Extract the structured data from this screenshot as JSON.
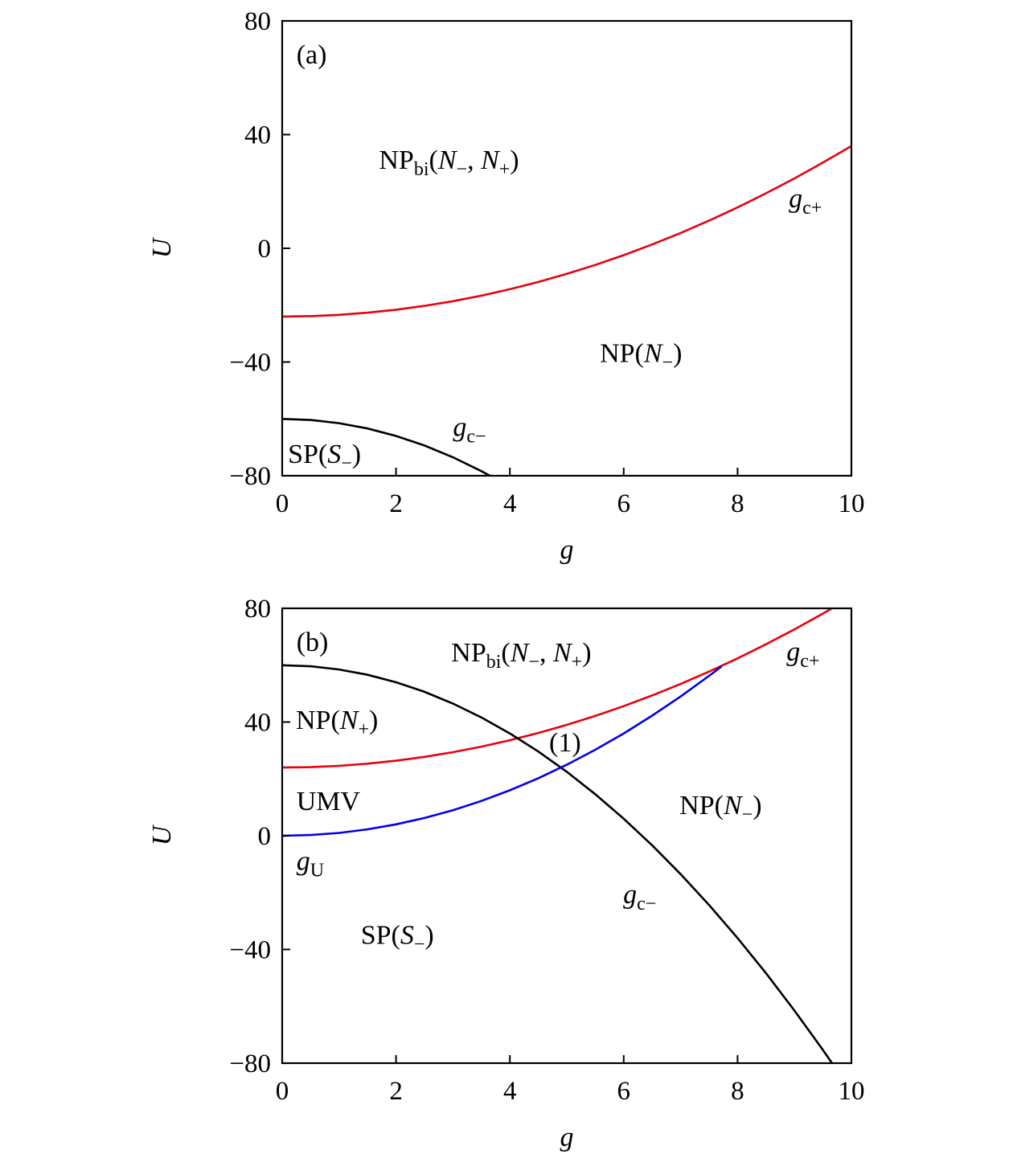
{
  "chart_data": [
    {
      "type": "line",
      "panel_label": "(a)",
      "xlabel": "g",
      "ylabel": "U",
      "xlim": [
        0,
        10
      ],
      "ylim": [
        -80,
        80
      ],
      "xticks": [
        "0",
        "2",
        "4",
        "6",
        "8",
        "10"
      ],
      "yticks": [
        "80",
        "40",
        "0",
        "−40",
        "−80"
      ],
      "grid": false,
      "series": [
        {
          "name": "g_c+",
          "color": "#e8000b",
          "x": [
            0,
            0.5,
            1,
            1.5,
            2,
            2.5,
            3,
            3.5,
            4,
            4.5,
            5,
            5.5,
            6,
            6.5,
            7,
            7.5,
            8,
            8.5,
            9,
            9.5,
            10
          ],
          "y": [
            -24,
            -23.85,
            -23.4,
            -22.65,
            -21.6,
            -20.25,
            -18.6,
            -16.65,
            -14.4,
            -11.85,
            -9,
            -5.85,
            -2.4,
            1.35,
            5.4,
            9.75,
            14.4,
            19.35,
            24.6,
            30.15,
            36
          ]
        },
        {
          "name": "g_c−",
          "color": "#000000",
          "x": [
            0,
            0.5,
            1,
            1.5,
            2,
            2.5,
            3,
            3.5,
            3.65
          ],
          "y": [
            -60,
            -60.375,
            -61.5,
            -63.375,
            -66,
            -69.375,
            -73.5,
            -78.375,
            -80
          ]
        }
      ],
      "annotations": [
        {
          "at": [
            0.25,
            65
          ],
          "parts": [
            {
              "t": "(a)"
            }
          ]
        },
        {
          "at": [
            1.7,
            28
          ],
          "parts": [
            {
              "t": "NP"
            },
            {
              "t": "bi",
              "sub": true
            },
            {
              "t": "("
            },
            {
              "t": "N",
              "it": true
            },
            {
              "t": "−",
              "sub": true
            },
            {
              "t": ", "
            },
            {
              "t": "N",
              "it": true
            },
            {
              "t": "+",
              "sub": true
            },
            {
              "t": ")"
            }
          ]
        },
        {
          "at": [
            8.9,
            14.4
          ],
          "parts": [
            {
              "t": "g",
              "it": true
            },
            {
              "t": "c+",
              "sub": true
            }
          ]
        },
        {
          "at": [
            5.58,
            -40
          ],
          "parts": [
            {
              "t": "NP("
            },
            {
              "t": "N",
              "it": true
            },
            {
              "t": "−",
              "sub": true
            },
            {
              "t": ")"
            }
          ]
        },
        {
          "at": [
            3.0,
            -66
          ],
          "parts": [
            {
              "t": "g",
              "it": true
            },
            {
              "t": "c−",
              "sub": true
            }
          ]
        },
        {
          "at": [
            0.1,
            -75.5
          ],
          "parts": [
            {
              "t": "SP("
            },
            {
              "t": "S",
              "it": true
            },
            {
              "t": "−",
              "sub": true
            },
            {
              "t": ")"
            }
          ]
        }
      ]
    },
    {
      "type": "line",
      "panel_label": "(b)",
      "xlabel": "g",
      "ylabel": "U",
      "xlim": [
        0,
        10
      ],
      "ylim": [
        -80,
        80
      ],
      "xticks": [
        "0",
        "2",
        "4",
        "6",
        "8",
        "10"
      ],
      "yticks": [
        "80",
        "40",
        "0",
        "−40",
        "−80"
      ],
      "grid": false,
      "series": [
        {
          "name": "g_c+",
          "color": "#e8000b",
          "x": [
            0,
            0.5,
            1,
            1.5,
            2,
            2.5,
            3,
            3.5,
            4,
            4.5,
            5,
            5.5,
            6,
            6.5,
            7,
            7.5,
            8,
            8.5,
            9,
            9.5,
            9.66
          ],
          "y": [
            24,
            24.15,
            24.6,
            25.35,
            26.4,
            27.75,
            29.4,
            31.35,
            33.6,
            36.15,
            39,
            42.15,
            45.6,
            49.35,
            53.4,
            57.75,
            62.4,
            67.35,
            72.6,
            78.15,
            80
          ]
        },
        {
          "name": "g_c−",
          "color": "#000000",
          "x": [
            0,
            0.5,
            1,
            1.5,
            2,
            2.5,
            3,
            3.5,
            4,
            4.5,
            5,
            5.5,
            6,
            6.5,
            7,
            7.5,
            8,
            8.5,
            9,
            9.5,
            9.66
          ],
          "y": [
            60,
            59.625,
            58.5,
            56.625,
            54,
            50.625,
            46.5,
            41.625,
            36,
            29.625,
            22.5,
            14.625,
            6,
            -3.375,
            -13.5,
            -24.375,
            -36,
            -48.375,
            -61.5,
            -75.375,
            -80
          ]
        },
        {
          "name": "g_U",
          "color": "#0000ee",
          "x": [
            0,
            0.5,
            1,
            1.5,
            2,
            2.5,
            3,
            3.5,
            4,
            4.5,
            5,
            5.5,
            6,
            6.5,
            7,
            7.5,
            7.72
          ],
          "y": [
            0,
            0.25,
            1,
            2.25,
            4,
            6.25,
            9,
            12.25,
            16,
            20.25,
            25,
            30.25,
            36,
            42.25,
            49,
            56.25,
            59.6
          ]
        }
      ],
      "annotations": [
        {
          "at": [
            0.25,
            65
          ],
          "parts": [
            {
              "t": "(b)"
            }
          ]
        },
        {
          "at": [
            2.97,
            61.3
          ],
          "parts": [
            {
              "t": "NP"
            },
            {
              "t": "bi",
              "sub": true
            },
            {
              "t": "("
            },
            {
              "t": "N",
              "it": true
            },
            {
              "t": "−",
              "sub": true
            },
            {
              "t": ", "
            },
            {
              "t": "N",
              "it": true
            },
            {
              "t": "+",
              "sub": true
            },
            {
              "t": ")"
            }
          ]
        },
        {
          "at": [
            8.86,
            61.6
          ],
          "parts": [
            {
              "t": "g",
              "it": true
            },
            {
              "t": "c+",
              "sub": true
            }
          ]
        },
        {
          "at": [
            0.24,
            37.6
          ],
          "parts": [
            {
              "t": "NP("
            },
            {
              "t": "N",
              "it": true
            },
            {
              "t": "+",
              "sub": true
            },
            {
              "t": ")"
            }
          ]
        },
        {
          "at": [
            4.69,
            29.7
          ],
          "parts": [
            {
              "t": "(1)"
            }
          ]
        },
        {
          "at": [
            0.25,
            9
          ],
          "parts": [
            {
              "t": "UMV"
            }
          ]
        },
        {
          "at": [
            6.98,
            7.6
          ],
          "parts": [
            {
              "t": "NP("
            },
            {
              "t": "N",
              "it": true
            },
            {
              "t": "−",
              "sub": true
            },
            {
              "t": ")"
            }
          ]
        },
        {
          "at": [
            0.25,
            -12
          ],
          "parts": [
            {
              "t": "g",
              "it": true
            },
            {
              "t": "U",
              "sub": true
            }
          ]
        },
        {
          "at": [
            5.99,
            -23.7
          ],
          "parts": [
            {
              "t": "g",
              "it": true
            },
            {
              "t": "c−",
              "sub": true
            }
          ]
        },
        {
          "at": [
            1.38,
            -38
          ],
          "parts": [
            {
              "t": "SP("
            },
            {
              "t": "S",
              "it": true
            },
            {
              "t": "−",
              "sub": true
            },
            {
              "t": ")"
            }
          ]
        }
      ]
    }
  ]
}
